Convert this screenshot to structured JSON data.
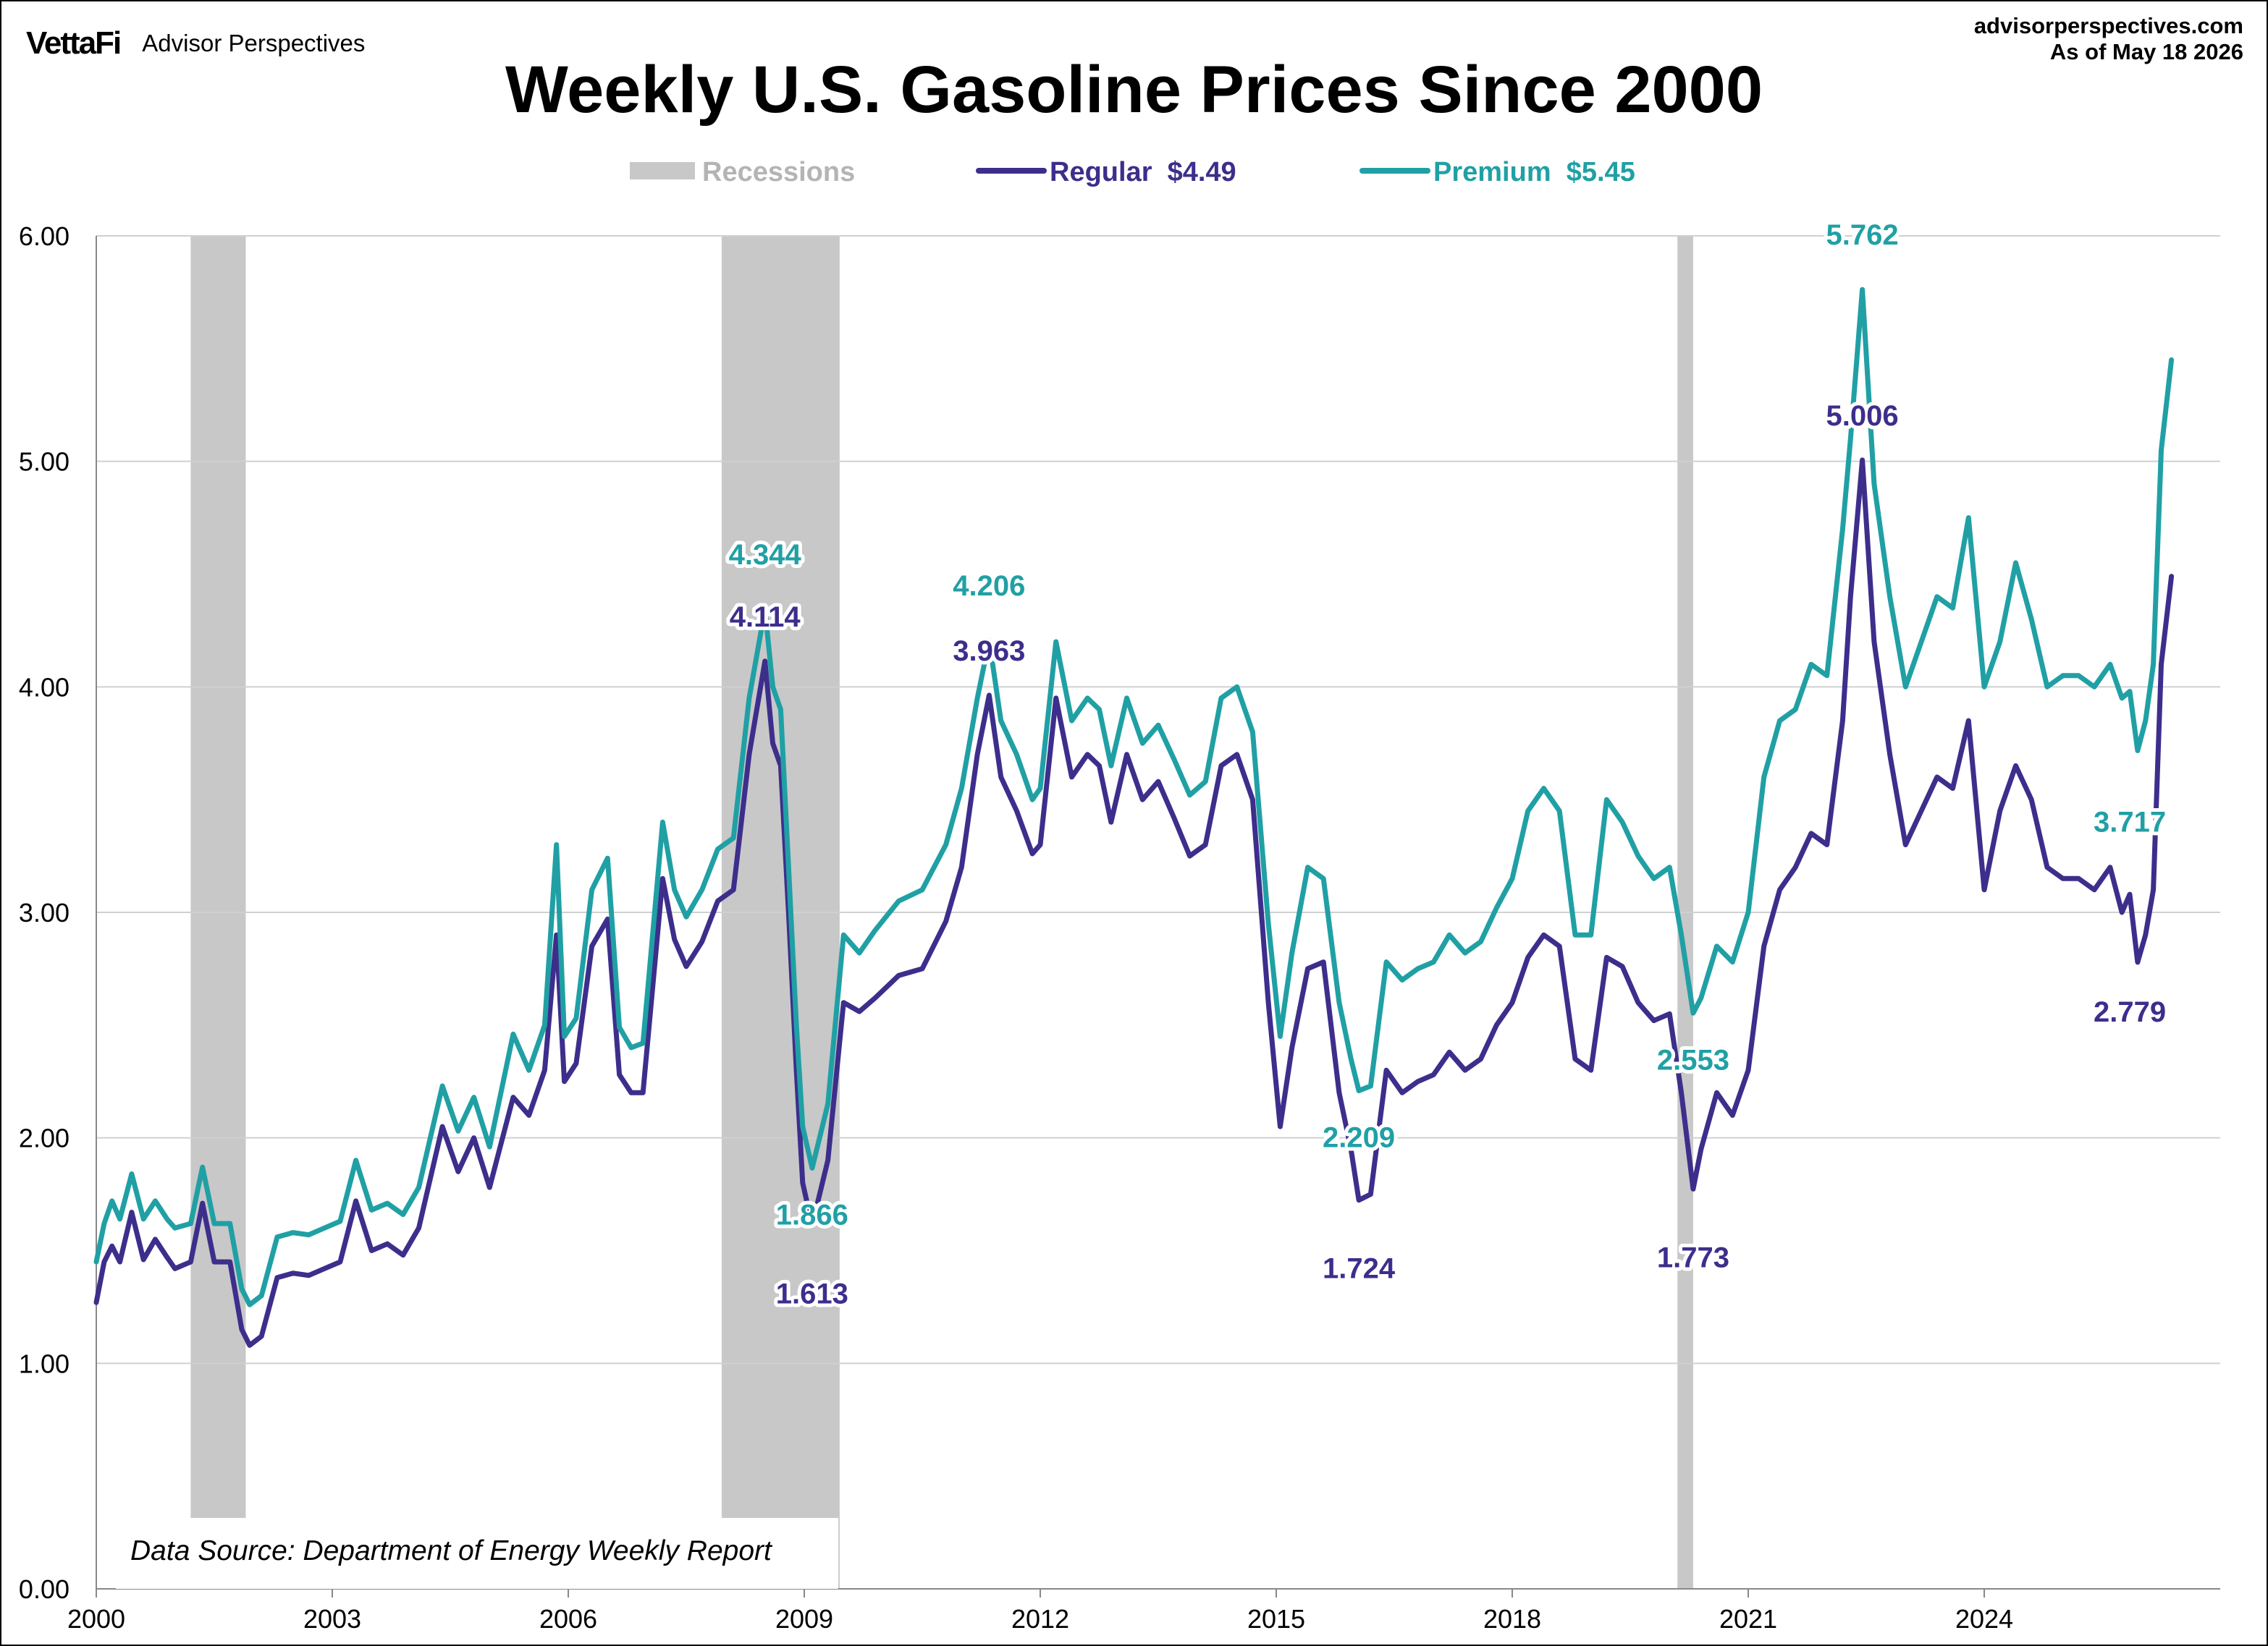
{
  "brand": {
    "logo": "VettaFi",
    "name": "Advisor Perspectives"
  },
  "site": {
    "url": "advisorperspectives.com",
    "as_of": "As of May 18 2026"
  },
  "colors": {
    "regular": "#3d2e8c",
    "premium": "#20a0a4",
    "recession": "#c8c8c8",
    "grid": "#d0d0d0"
  },
  "chart_data": {
    "type": "line",
    "title": "Weekly U.S. Gasoline Prices Since 2000",
    "xlabel": "",
    "ylabel": "",
    "xlim": [
      2000.0,
      2027.0
    ],
    "ylim": [
      0,
      6
    ],
    "y_ticks": [
      "0.00",
      "1.00",
      "2.00",
      "3.00",
      "4.00",
      "5.00",
      "6.00"
    ],
    "x_ticks": [
      "2000",
      "2003",
      "2006",
      "2009",
      "2012",
      "2015",
      "2018",
      "2021",
      "2024"
    ],
    "grid": true,
    "legend": {
      "placement": "top-center",
      "recession_label": "Recessions",
      "regular_label": "Regular  $4.49",
      "premium_label": "Premium  $5.45"
    },
    "source_note": "Data Source: Department of Energy Weekly Report",
    "recessions": [
      [
        2001.2,
        2001.9
      ],
      [
        2007.95,
        2009.45
      ],
      [
        2020.1,
        2020.3
      ]
    ],
    "series": [
      {
        "name": "Regular",
        "color": "#3d2e8c",
        "x": [
          2000.0,
          2000.1,
          2000.2,
          2000.3,
          2000.45,
          2000.6,
          2000.75,
          2000.9,
          2001.0,
          2001.2,
          2001.35,
          2001.5,
          2001.7,
          2001.85,
          2001.95,
          2002.1,
          2002.3,
          2002.5,
          2002.7,
          2002.9,
          2003.1,
          2003.3,
          2003.5,
          2003.7,
          2003.9,
          2004.1,
          2004.4,
          2004.6,
          2004.8,
          2005.0,
          2005.3,
          2005.5,
          2005.7,
          2005.85,
          2005.95,
          2006.1,
          2006.3,
          2006.5,
          2006.65,
          2006.8,
          2006.95,
          2007.2,
          2007.35,
          2007.5,
          2007.7,
          2007.9,
          2008.1,
          2008.3,
          2008.5,
          2008.6,
          2008.7,
          2008.8,
          2008.9,
          2008.98,
          2009.1,
          2009.3,
          2009.5,
          2009.7,
          2009.9,
          2010.2,
          2010.5,
          2010.8,
          2011.0,
          2011.2,
          2011.35,
          2011.5,
          2011.7,
          2011.9,
          2012.0,
          2012.2,
          2012.4,
          2012.6,
          2012.75,
          2012.9,
          2013.1,
          2013.3,
          2013.5,
          2013.7,
          2013.9,
          2014.1,
          2014.3,
          2014.5,
          2014.7,
          2014.9,
          2015.05,
          2015.2,
          2015.4,
          2015.6,
          2015.8,
          2015.95,
          2016.05,
          2016.2,
          2016.4,
          2016.6,
          2016.8,
          2017.0,
          2017.2,
          2017.4,
          2017.6,
          2017.8,
          2018.0,
          2018.2,
          2018.4,
          2018.6,
          2018.8,
          2019.0,
          2019.2,
          2019.4,
          2019.6,
          2019.8,
          2020.0,
          2020.15,
          2020.3,
          2020.4,
          2020.6,
          2020.8,
          2021.0,
          2021.2,
          2021.4,
          2021.6,
          2021.8,
          2022.0,
          2022.2,
          2022.3,
          2022.45,
          2022.6,
          2022.8,
          2023.0,
          2023.2,
          2023.4,
          2023.6,
          2023.8,
          2024.0,
          2024.2,
          2024.4,
          2024.6,
          2024.8,
          2025.0,
          2025.2,
          2025.4,
          2025.6,
          2025.75,
          2025.85,
          2025.95,
          2026.05,
          2026.15,
          2026.25,
          2026.38
        ],
        "y": [
          1.27,
          1.45,
          1.52,
          1.45,
          1.67,
          1.46,
          1.55,
          1.47,
          1.42,
          1.45,
          1.71,
          1.45,
          1.45,
          1.15,
          1.08,
          1.12,
          1.38,
          1.4,
          1.39,
          1.42,
          1.45,
          1.72,
          1.5,
          1.53,
          1.48,
          1.6,
          2.05,
          1.85,
          2.0,
          1.78,
          2.18,
          2.1,
          2.3,
          2.9,
          2.25,
          2.33,
          2.85,
          2.97,
          2.28,
          2.2,
          2.2,
          3.15,
          2.88,
          2.76,
          2.87,
          3.05,
          3.1,
          3.7,
          4.114,
          3.75,
          3.65,
          3.0,
          2.3,
          1.8,
          1.613,
          1.9,
          2.6,
          2.56,
          2.62,
          2.72,
          2.75,
          2.96,
          3.2,
          3.7,
          3.963,
          3.6,
          3.45,
          3.26,
          3.3,
          3.95,
          3.6,
          3.7,
          3.65,
          3.4,
          3.7,
          3.5,
          3.58,
          3.42,
          3.25,
          3.3,
          3.65,
          3.7,
          3.5,
          2.6,
          2.05,
          2.4,
          2.75,
          2.78,
          2.2,
          1.95,
          1.724,
          1.75,
          2.3,
          2.2,
          2.25,
          2.28,
          2.38,
          2.3,
          2.35,
          2.5,
          2.6,
          2.8,
          2.9,
          2.85,
          2.35,
          2.3,
          2.8,
          2.76,
          2.6,
          2.52,
          2.55,
          2.2,
          1.773,
          1.95,
          2.2,
          2.1,
          2.3,
          2.85,
          3.1,
          3.2,
          3.35,
          3.3,
          3.85,
          4.4,
          5.006,
          4.2,
          3.7,
          3.3,
          3.45,
          3.6,
          3.55,
          3.85,
          3.1,
          3.45,
          3.65,
          3.5,
          3.2,
          3.15,
          3.15,
          3.1,
          3.2,
          3.0,
          3.08,
          2.779,
          2.9,
          3.1,
          4.1,
          4.49
        ]
      },
      {
        "name": "Premium",
        "color": "#20a0a4",
        "x": [
          2000.0,
          2000.1,
          2000.2,
          2000.3,
          2000.45,
          2000.6,
          2000.75,
          2000.9,
          2001.0,
          2001.2,
          2001.35,
          2001.5,
          2001.7,
          2001.85,
          2001.95,
          2002.1,
          2002.3,
          2002.5,
          2002.7,
          2002.9,
          2003.1,
          2003.3,
          2003.5,
          2003.7,
          2003.9,
          2004.1,
          2004.4,
          2004.6,
          2004.8,
          2005.0,
          2005.3,
          2005.5,
          2005.7,
          2005.85,
          2005.95,
          2006.1,
          2006.3,
          2006.5,
          2006.65,
          2006.8,
          2006.95,
          2007.2,
          2007.35,
          2007.5,
          2007.7,
          2007.9,
          2008.1,
          2008.3,
          2008.5,
          2008.6,
          2008.7,
          2008.8,
          2008.9,
          2008.98,
          2009.1,
          2009.3,
          2009.5,
          2009.7,
          2009.9,
          2010.2,
          2010.5,
          2010.8,
          2011.0,
          2011.2,
          2011.35,
          2011.5,
          2011.7,
          2011.9,
          2012.0,
          2012.2,
          2012.4,
          2012.6,
          2012.75,
          2012.9,
          2013.1,
          2013.3,
          2013.5,
          2013.7,
          2013.9,
          2014.1,
          2014.3,
          2014.5,
          2014.7,
          2014.9,
          2015.05,
          2015.2,
          2015.4,
          2015.6,
          2015.8,
          2015.95,
          2016.05,
          2016.2,
          2016.4,
          2016.6,
          2016.8,
          2017.0,
          2017.2,
          2017.4,
          2017.6,
          2017.8,
          2018.0,
          2018.2,
          2018.4,
          2018.6,
          2018.8,
          2019.0,
          2019.2,
          2019.4,
          2019.6,
          2019.8,
          2020.0,
          2020.15,
          2020.3,
          2020.4,
          2020.6,
          2020.8,
          2021.0,
          2021.2,
          2021.4,
          2021.6,
          2021.8,
          2022.0,
          2022.2,
          2022.3,
          2022.45,
          2022.6,
          2022.8,
          2023.0,
          2023.2,
          2023.4,
          2023.6,
          2023.8,
          2024.0,
          2024.2,
          2024.4,
          2024.6,
          2024.8,
          2025.0,
          2025.2,
          2025.4,
          2025.6,
          2025.75,
          2025.85,
          2025.95,
          2026.05,
          2026.15,
          2026.25,
          2026.38
        ],
        "y": [
          1.45,
          1.62,
          1.72,
          1.64,
          1.84,
          1.64,
          1.72,
          1.64,
          1.6,
          1.62,
          1.87,
          1.62,
          1.62,
          1.33,
          1.26,
          1.3,
          1.56,
          1.58,
          1.57,
          1.6,
          1.63,
          1.9,
          1.68,
          1.71,
          1.66,
          1.78,
          2.23,
          2.03,
          2.18,
          1.96,
          2.46,
          2.3,
          2.5,
          3.3,
          2.45,
          2.53,
          3.1,
          3.24,
          2.49,
          2.4,
          2.42,
          3.4,
          3.1,
          2.98,
          3.1,
          3.28,
          3.33,
          3.95,
          4.344,
          4.0,
          3.9,
          3.2,
          2.5,
          2.05,
          1.866,
          2.15,
          2.9,
          2.82,
          2.92,
          3.05,
          3.1,
          3.3,
          3.55,
          3.95,
          4.206,
          3.85,
          3.7,
          3.5,
          3.55,
          4.2,
          3.85,
          3.95,
          3.9,
          3.65,
          3.95,
          3.75,
          3.83,
          3.68,
          3.52,
          3.58,
          3.95,
          4.0,
          3.8,
          2.95,
          2.45,
          2.82,
          3.2,
          3.15,
          2.6,
          2.35,
          2.209,
          2.23,
          2.78,
          2.7,
          2.75,
          2.78,
          2.9,
          2.82,
          2.87,
          3.02,
          3.15,
          3.45,
          3.55,
          3.45,
          2.9,
          2.9,
          3.5,
          3.4,
          3.25,
          3.15,
          3.2,
          2.9,
          2.553,
          2.62,
          2.85,
          2.78,
          3.0,
          3.6,
          3.85,
          3.9,
          4.1,
          4.05,
          4.7,
          5.1,
          5.762,
          4.9,
          4.4,
          4.0,
          4.2,
          4.4,
          4.35,
          4.75,
          4.0,
          4.2,
          4.55,
          4.3,
          4.0,
          4.05,
          4.05,
          4.0,
          4.1,
          3.95,
          3.98,
          3.717,
          3.85,
          4.1,
          5.05,
          5.45
        ]
      }
    ],
    "annotations": [
      {
        "text": "4.344",
        "series": "Premium",
        "x": 2008.5,
        "y": 4.344
      },
      {
        "text": "4.114",
        "series": "Regular",
        "x": 2008.5,
        "y": 4.114
      },
      {
        "text": "1.866",
        "series": "Premium",
        "x": 2009.1,
        "y": 1.866
      },
      {
        "text": "1.613",
        "series": "Regular",
        "x": 2009.1,
        "y": 1.613
      },
      {
        "text": "4.206",
        "series": "Premium",
        "x": 2011.35,
        "y": 4.206
      },
      {
        "text": "3.963",
        "series": "Regular",
        "x": 2011.35,
        "y": 3.963
      },
      {
        "text": "2.209",
        "series": "Premium",
        "x": 2016.05,
        "y": 2.209
      },
      {
        "text": "1.724",
        "series": "Regular",
        "x": 2016.05,
        "y": 1.724
      },
      {
        "text": "2.553",
        "series": "Premium",
        "x": 2020.3,
        "y": 2.553
      },
      {
        "text": "1.773",
        "series": "Regular",
        "x": 2020.3,
        "y": 1.773
      },
      {
        "text": "5.762",
        "series": "Premium",
        "x": 2022.45,
        "y": 5.762
      },
      {
        "text": "5.006",
        "series": "Regular",
        "x": 2022.45,
        "y": 5.006
      },
      {
        "text": "3.717",
        "series": "Premium",
        "x": 2025.85,
        "y": 3.717
      },
      {
        "text": "2.779",
        "series": "Regular",
        "x": 2025.85,
        "y": 2.779
      }
    ]
  }
}
